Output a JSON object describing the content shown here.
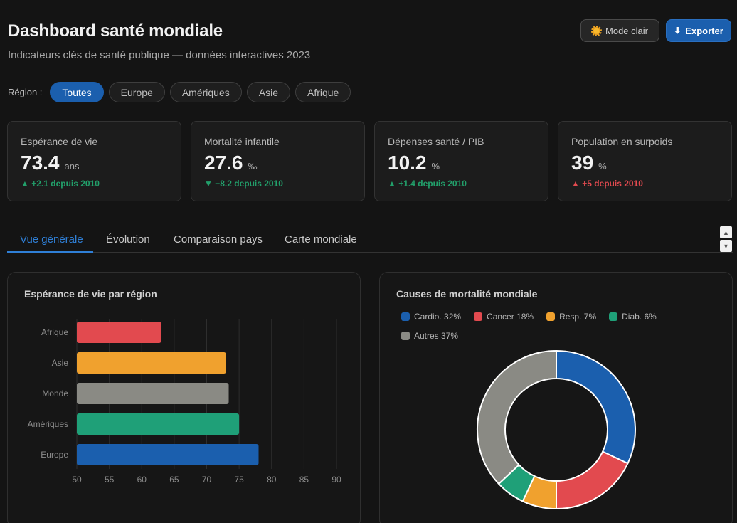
{
  "header": {
    "title": "Dashboard santé mondiale",
    "subtitle": "Indicateurs clés de santé publique — données interactives 2023"
  },
  "actions": {
    "mode_label": "Mode clair",
    "export_label": "Exporter",
    "mode_icon": "sun-icon",
    "export_icon": "download-icon"
  },
  "region": {
    "label": "Région :",
    "chips": [
      "Toutes",
      "Europe",
      "Amériques",
      "Asie",
      "Afrique"
    ],
    "selected": "Toutes"
  },
  "kpis": [
    {
      "label": "Espérance de vie",
      "value": "73.4",
      "unit": "ans",
      "delta": "▲ +2.1 depuis 2010",
      "trend": "up"
    },
    {
      "label": "Mortalité infantile",
      "value": "27.6",
      "unit": "‰",
      "delta": "▼ −8.2 depuis 2010",
      "trend": "up"
    },
    {
      "label": "Dépenses santé / PIB",
      "value": "10.2",
      "unit": "%",
      "delta": "▲ +1.4 depuis 2010",
      "trend": "up"
    },
    {
      "label": "Population en surpoids",
      "value": "39",
      "unit": "%",
      "delta": "▲ +5 depuis 2010",
      "trend": "down"
    }
  ],
  "tabs": [
    "Vue générale",
    "Évolution",
    "Comparaison pays",
    "Carte mondiale"
  ],
  "colors": {
    "accent": "#1b5fae",
    "positive": "#22a06b",
    "negative": "#e24a4f"
  },
  "chart_data": [
    {
      "type": "bar",
      "orientation": "horizontal",
      "title": "Espérance de vie par région",
      "categories": [
        "Afrique",
        "Asie",
        "Monde",
        "Amériques",
        "Europe"
      ],
      "values": [
        63,
        73,
        73.4,
        75,
        78
      ],
      "colors": [
        "#e24a4f",
        "#f0a12e",
        "#8a8a84",
        "#1fa078",
        "#1b5fae"
      ],
      "xlim": [
        50,
        90
      ],
      "xticks": [
        50,
        55,
        60,
        65,
        70,
        75,
        80,
        85,
        90
      ],
      "grid": true
    },
    {
      "type": "pie",
      "variant": "donut",
      "title": "Causes de mortalité mondiale",
      "labels": [
        "Cardio.",
        "Cancer",
        "Resp.",
        "Diab.",
        "Autres"
      ],
      "legend_labels": [
        "Cardio. 32%",
        "Cancer 18%",
        "Resp. 7%",
        "Diab. 6%",
        "Autres 37%"
      ],
      "values": [
        32,
        18,
        7,
        6,
        37
      ],
      "colors": [
        "#1b5fae",
        "#e24a4f",
        "#f0a12e",
        "#1fa078",
        "#8a8a84"
      ],
      "legend_position": "top"
    }
  ]
}
